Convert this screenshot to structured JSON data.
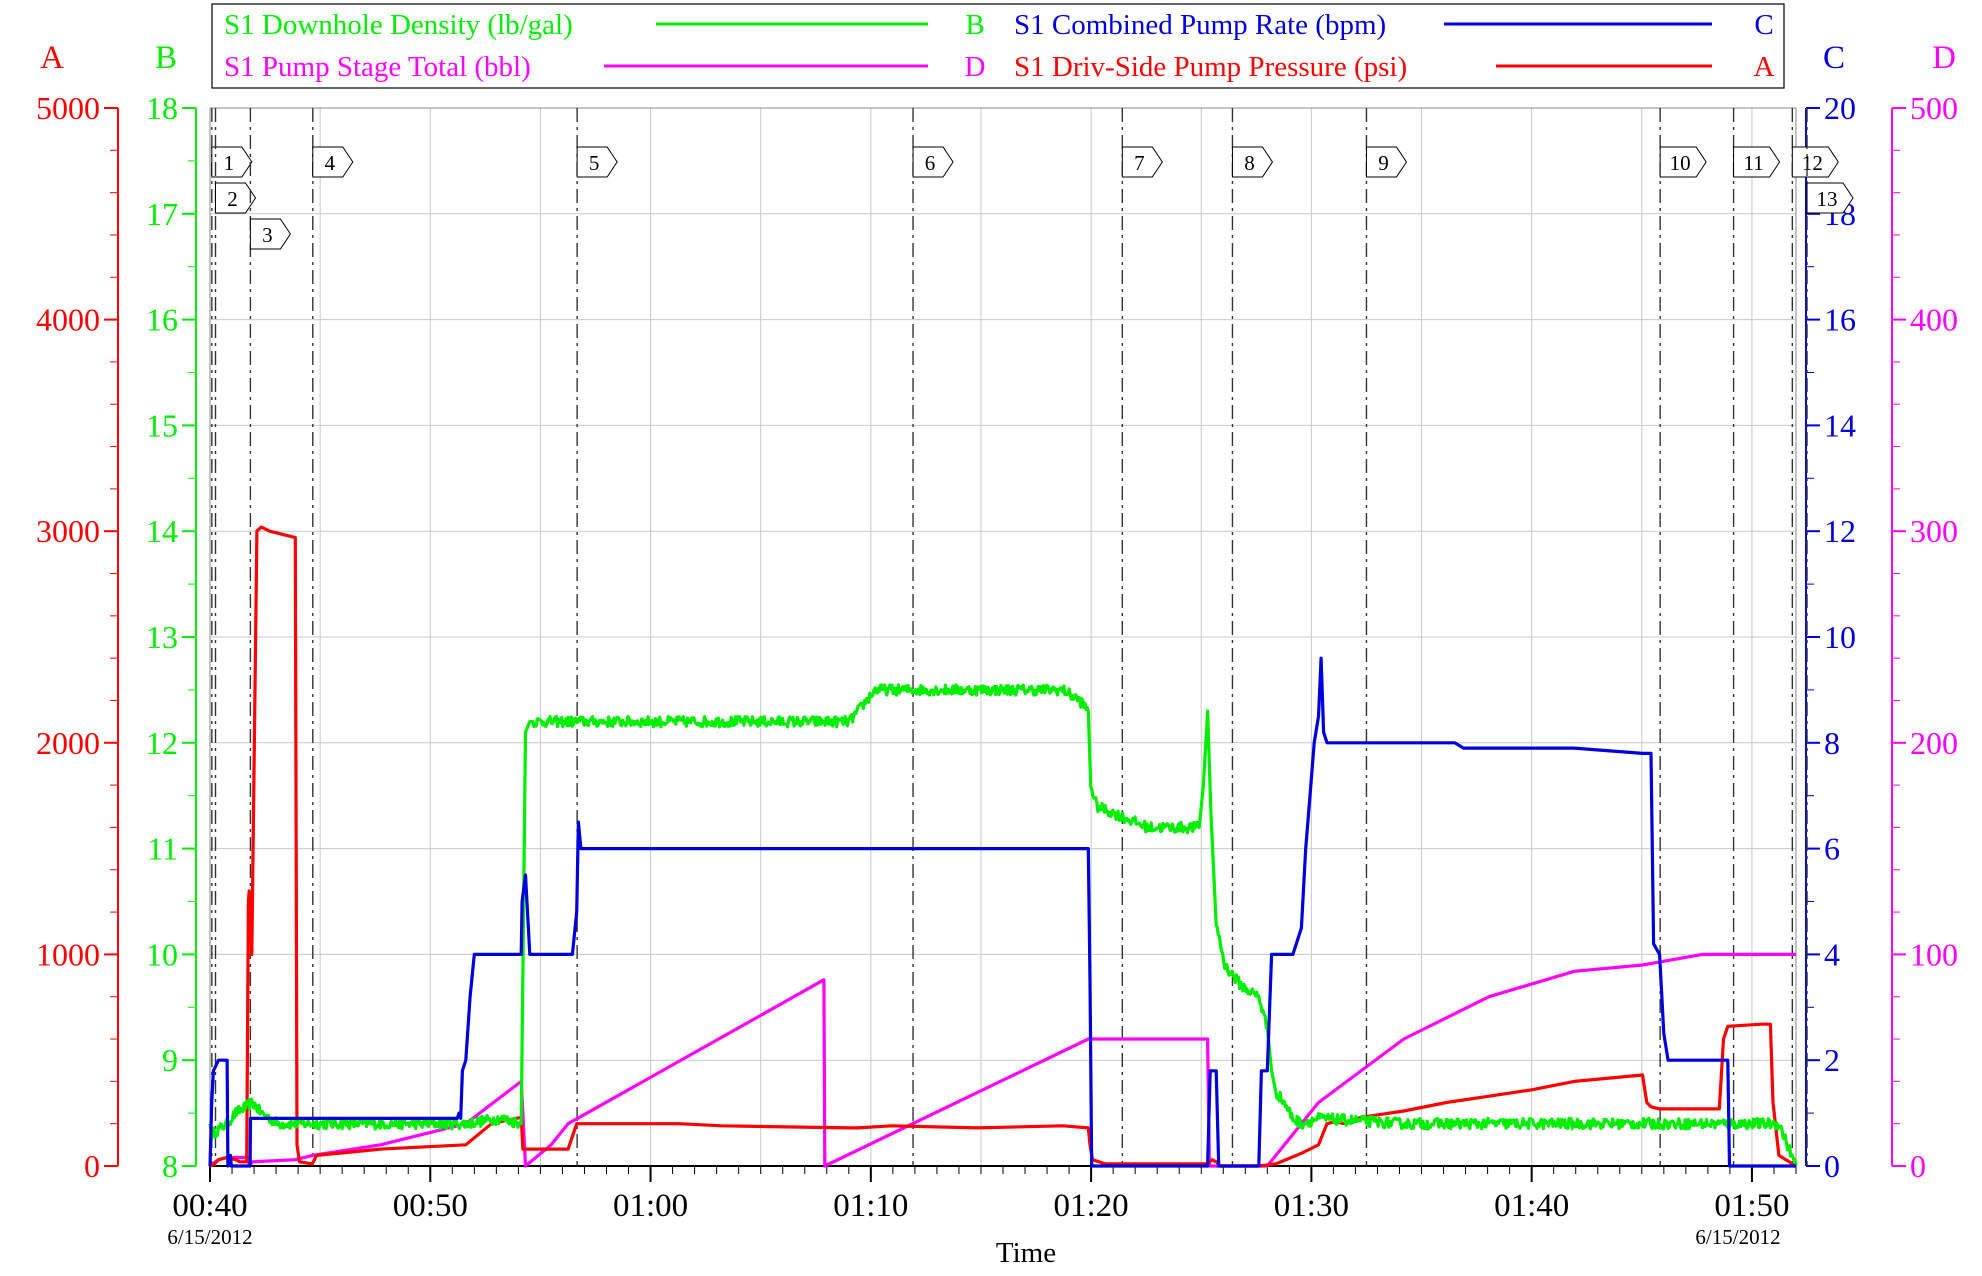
{
  "chart_data": {
    "type": "line",
    "xlabel": "Time",
    "x_start_label_date": "6/15/2012",
    "x_end_label_date": "6/15/2012",
    "x_ticks": [
      "00:40",
      "00:50",
      "01:00",
      "01:10",
      "01:20",
      "01:30",
      "01:40",
      "01:50"
    ],
    "x_range": [
      "00:40",
      "01:52"
    ],
    "grid": true,
    "legend_placement": "top",
    "axes": [
      {
        "id": "A",
        "label": "A",
        "side": "left",
        "color": "#ff0000",
        "range": [
          0,
          5000
        ],
        "ticks": [
          0,
          1000,
          2000,
          3000,
          4000,
          5000
        ]
      },
      {
        "id": "B",
        "label": "B",
        "side": "left",
        "color": "#00ee00",
        "range": [
          8,
          18
        ],
        "ticks": [
          8,
          9,
          10,
          11,
          12,
          13,
          14,
          15,
          16,
          17,
          18
        ]
      },
      {
        "id": "C",
        "label": "C",
        "side": "right",
        "color": "#0000dd",
        "range": [
          0,
          20
        ],
        "ticks": [
          0,
          2,
          4,
          6,
          8,
          10,
          12,
          14,
          16,
          18,
          20
        ]
      },
      {
        "id": "D",
        "label": "D",
        "side": "right",
        "color": "#ff00ff",
        "range": [
          0,
          500
        ],
        "ticks": [
          0,
          100,
          200,
          300,
          400,
          500
        ]
      }
    ],
    "legend": [
      {
        "name": "S1 Downhole Density (lb/gal)",
        "axis": "B",
        "color": "#00ee00"
      },
      {
        "name": "S1 Combined Pump Rate (bpm)",
        "axis": "C",
        "color": "#0000dd"
      },
      {
        "name": "S1 Pump Stage Total (bbl)",
        "axis": "D",
        "color": "#ff00ff"
      },
      {
        "name": "S1 Driv-Side Pump Pressure (psi)",
        "axis": "A",
        "color": "#ff0000"
      }
    ],
    "events": [
      {
        "label": "1",
        "time": "00:40:05"
      },
      {
        "label": "2",
        "time": "00:40:15"
      },
      {
        "label": "3",
        "time": "00:41:50"
      },
      {
        "label": "4",
        "time": "00:44:40"
      },
      {
        "label": "5",
        "time": "00:56:40"
      },
      {
        "label": "6",
        "time": "01:11:55"
      },
      {
        "label": "7",
        "time": "01:21:25"
      },
      {
        "label": "8",
        "time": "01:26:25"
      },
      {
        "label": "9",
        "time": "01:32:30"
      },
      {
        "label": "10",
        "time": "01:45:50"
      },
      {
        "label": "11",
        "time": "01:49:10"
      },
      {
        "label": "12",
        "time": "01:51:50"
      },
      {
        "label": "13",
        "time": "01:52:30"
      }
    ],
    "series": [
      {
        "name": "S1 Combined Pump Rate (bpm)",
        "axis": "C",
        "color": "#0000dd",
        "mode": "linear",
        "points": [
          [
            0,
            0
          ],
          [
            0.2,
            1.2
          ],
          [
            0.4,
            1.8
          ],
          [
            1,
            2
          ],
          [
            1.5,
            2
          ],
          [
            1.6,
            2
          ],
          [
            2.0,
            2
          ],
          [
            2.1,
            0
          ],
          [
            2.4,
            0.2
          ],
          [
            2.5,
            0
          ],
          [
            4.7,
            0
          ],
          [
            4.75,
            0.9
          ],
          [
            5,
            0.9
          ],
          [
            29,
            0.9
          ],
          [
            29.2,
            1.0
          ],
          [
            29.4,
            0.9
          ],
          [
            29.6,
            1.8
          ],
          [
            30,
            2
          ],
          [
            30.5,
            3.2
          ],
          [
            31,
            4
          ],
          [
            36.5,
            4
          ],
          [
            36.6,
            5
          ],
          [
            37,
            5.5
          ],
          [
            37.5,
            4
          ],
          [
            42.5,
            4
          ],
          [
            43,
            4.8
          ],
          [
            43.2,
            6.5
          ],
          [
            43.5,
            6
          ],
          [
            55,
            6
          ],
          [
            60,
            6
          ],
          [
            70,
            6
          ],
          [
            75,
            6
          ],
          [
            100,
            6
          ],
          [
            102,
            6
          ],
          [
            103,
            6
          ],
          [
            103.2,
            3.5
          ],
          [
            103.4,
            0
          ],
          [
            106,
            0
          ],
          [
            107.5,
            0
          ],
          [
            111,
            0
          ],
          [
            113,
            0
          ],
          [
            116,
            0
          ],
          [
            117,
            0
          ],
          [
            117.3,
            1.8
          ],
          [
            118,
            1.8
          ],
          [
            118.3,
            0
          ],
          [
            123,
            0
          ],
          [
            123.3,
            1.8
          ],
          [
            124,
            1.8
          ],
          [
            124.5,
            4
          ],
          [
            127,
            4
          ],
          [
            128,
            4.5
          ],
          [
            128.5,
            6
          ],
          [
            129,
            7
          ],
          [
            129.5,
            8
          ],
          [
            130,
            8.5
          ],
          [
            130.3,
            9.6
          ],
          [
            130.6,
            8.2
          ],
          [
            131,
            8
          ],
          [
            146,
            8
          ],
          [
            147,
            7.9
          ],
          [
            160,
            7.9
          ],
          [
            168,
            7.8
          ],
          [
            169,
            7.8
          ],
          [
            169,
            7.8
          ],
          [
            169.3,
            4.2
          ],
          [
            170,
            4
          ],
          [
            170.5,
            2.5
          ],
          [
            171,
            2
          ],
          [
            175,
            2
          ],
          [
            175,
            2
          ],
          [
            176,
            2
          ],
          [
            178,
            2
          ],
          [
            178.2,
            0
          ],
          [
            186,
            0
          ]
        ],
        "segments_hold": true
      },
      {
        "name": "S1 Downhole Density (lb/gal)",
        "axis": "B",
        "color": "#00ee00",
        "mode": "noisy",
        "points": [
          [
            0,
            8.4
          ],
          [
            0.2,
            8.3
          ],
          [
            2,
            8.4
          ],
          [
            3,
            8.5
          ],
          [
            5,
            8.6
          ],
          [
            6,
            8.5
          ],
          [
            8,
            8.4
          ],
          [
            10,
            8.4
          ],
          [
            20,
            8.4
          ],
          [
            30,
            8.4
          ],
          [
            34,
            8.45
          ],
          [
            36.5,
            8.4
          ],
          [
            37,
            12.1
          ],
          [
            37.5,
            12.2
          ],
          [
            38,
            12.2
          ],
          [
            45,
            12.2
          ],
          [
            60,
            12.2
          ],
          [
            70,
            12.2
          ],
          [
            75,
            12.2
          ],
          [
            76,
            12.3
          ],
          [
            77,
            12.4
          ],
          [
            78,
            12.5
          ],
          [
            85,
            12.5
          ],
          [
            100,
            12.5
          ],
          [
            102,
            12.4
          ],
          [
            103,
            12.3
          ],
          [
            103.3,
            11.6
          ],
          [
            104,
            11.4
          ],
          [
            110,
            11.2
          ],
          [
            115,
            11.2
          ],
          [
            116,
            11.2
          ],
          [
            116.5,
            11.6
          ],
          [
            117,
            12.3
          ],
          [
            117.4,
            11.3
          ],
          [
            118,
            10.3
          ],
          [
            119,
            9.9
          ],
          [
            121,
            9.7
          ],
          [
            123,
            9.6
          ],
          [
            124,
            9.3
          ],
          [
            124.5,
            8.9
          ],
          [
            125,
            8.7
          ],
          [
            126,
            8.6
          ],
          [
            127,
            8.45
          ],
          [
            128,
            8.4
          ],
          [
            130,
            8.45
          ],
          [
            140,
            8.4
          ],
          [
            150,
            8.4
          ],
          [
            160,
            8.4
          ],
          [
            170,
            8.4
          ],
          [
            180,
            8.4
          ],
          [
            182,
            8.4
          ],
          [
            184,
            8.4
          ],
          [
            185,
            8.2
          ],
          [
            186,
            8
          ]
        ],
        "noise": 0.05
      },
      {
        "name": "S1 Driv-Side Pump Pressure (psi)",
        "axis": "A",
        "color": "#ff0000",
        "mode": "linear",
        "points": [
          [
            0,
            0
          ],
          [
            0.5,
            10
          ],
          [
            1,
            30
          ],
          [
            2,
            40
          ],
          [
            3,
            30
          ],
          [
            3.5,
            20
          ],
          [
            4.3,
            20
          ],
          [
            4.5,
            1250
          ],
          [
            4.6,
            1300
          ],
          [
            4.9,
            1000
          ],
          [
            5.5,
            3000
          ],
          [
            6,
            3020
          ],
          [
            7,
            3000
          ],
          [
            9,
            2980
          ],
          [
            10,
            2970
          ],
          [
            10.2,
            100
          ],
          [
            10.5,
            20
          ],
          [
            12,
            10
          ],
          [
            12.5,
            50
          ],
          [
            20,
            80
          ],
          [
            30,
            100
          ],
          [
            33,
            200
          ],
          [
            36.5,
            230
          ],
          [
            36.7,
            80
          ],
          [
            42,
            80
          ],
          [
            43,
            200
          ],
          [
            45,
            200
          ],
          [
            55,
            200
          ],
          [
            60,
            190
          ],
          [
            75,
            180
          ],
          [
            76,
            180
          ],
          [
            80,
            190
          ],
          [
            90,
            180
          ],
          [
            100,
            190
          ],
          [
            103,
            180
          ],
          [
            103.2,
            100
          ],
          [
            103.5,
            30
          ],
          [
            105,
            10
          ],
          [
            110,
            10
          ],
          [
            117,
            10
          ],
          [
            117.5,
            30
          ],
          [
            118,
            20
          ],
          [
            118.5,
            0
          ],
          [
            123,
            0
          ],
          [
            125,
            10
          ],
          [
            128,
            60
          ],
          [
            129,
            80
          ],
          [
            130,
            100
          ],
          [
            131,
            200
          ],
          [
            132,
            210
          ],
          [
            133,
            200
          ],
          [
            135,
            230
          ],
          [
            140,
            260
          ],
          [
            145,
            300
          ],
          [
            150,
            330
          ],
          [
            155,
            360
          ],
          [
            160,
            400
          ],
          [
            168,
            430
          ],
          [
            168.5,
            300
          ],
          [
            169,
            280
          ],
          [
            170,
            270
          ],
          [
            176,
            270
          ],
          [
            177,
            270
          ],
          [
            177.5,
            600
          ],
          [
            178,
            660
          ],
          [
            182,
            670
          ],
          [
            183,
            670
          ],
          [
            183.3,
            300
          ],
          [
            184,
            50
          ],
          [
            186,
            0
          ]
        ]
      },
      {
        "name": "S1 Pump Stage Total (bbl)",
        "axis": "D",
        "color": "#ff00ff",
        "mode": "linear",
        "points": [
          [
            0,
            0
          ],
          [
            1,
            3
          ],
          [
            2,
            4
          ],
          [
            3,
            4
          ],
          [
            4.5,
            4
          ],
          [
            4.6,
            0
          ],
          [
            5,
            2
          ],
          [
            10,
            3
          ],
          [
            12,
            5
          ],
          [
            20,
            10
          ],
          [
            30,
            20
          ],
          [
            36.5,
            40
          ],
          [
            37,
            0
          ],
          [
            40,
            10
          ],
          [
            42,
            20
          ],
          [
            72,
            88
          ],
          [
            72.1,
            0
          ],
          [
            103,
            60
          ],
          [
            103.2,
            60
          ],
          [
            117,
            60
          ],
          [
            117.2,
            0
          ],
          [
            124,
            0
          ],
          [
            130,
            30
          ],
          [
            140,
            60
          ],
          [
            150,
            80
          ],
          [
            160,
            92
          ],
          [
            168,
            95
          ],
          [
            175,
            100
          ],
          [
            186,
            100
          ]
        ]
      }
    ]
  }
}
